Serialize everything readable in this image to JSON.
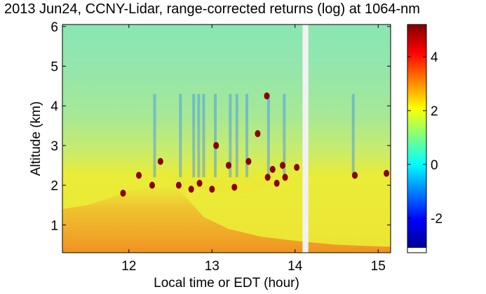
{
  "chart_data": {
    "type": "heatmap",
    "title": "2013 Jun24, CCNY-Lidar, range-corrected returns (log) at 1064-nm",
    "xlabel": "Local time or EDT (hour)",
    "ylabel": "Altitude (km)",
    "xlim": [
      11.2,
      15.15
    ],
    "ylim": [
      0.3,
      6.05
    ],
    "xticks": [
      "12",
      "13",
      "14",
      "15"
    ],
    "yticks": [
      "1",
      "2",
      "3",
      "4",
      "5",
      "6"
    ],
    "colorbar": {
      "range": [
        -3.1,
        5.2
      ],
      "ticks": [
        "-2",
        "0",
        "2",
        "4"
      ],
      "colormap": "jet"
    },
    "data_gap": [
      14.09,
      14.16
    ],
    "layers": {
      "boundary_layer_top_km": [
        {
          "x": 11.2,
          "y": 2.4
        },
        {
          "x": 11.6,
          "y": 2.35
        },
        {
          "x": 12.0,
          "y": 2.3
        },
        {
          "x": 12.4,
          "y": 2.2
        },
        {
          "x": 12.7,
          "y": 2.0
        },
        {
          "x": 13.0,
          "y": 1.85
        },
        {
          "x": 13.4,
          "y": 1.8
        },
        {
          "x": 13.8,
          "y": 2.05
        },
        {
          "x": 14.08,
          "y": 2.1
        },
        {
          "x": 14.2,
          "y": 2.2
        },
        {
          "x": 14.7,
          "y": 2.25
        },
        {
          "x": 15.15,
          "y": 2.3
        }
      ],
      "cloud_returns": [
        {
          "x": 11.93,
          "y": 1.8
        },
        {
          "x": 12.12,
          "y": 2.25
        },
        {
          "x": 12.28,
          "y": 2.0
        },
        {
          "x": 12.38,
          "y": 2.6
        },
        {
          "x": 12.6,
          "y": 2.0
        },
        {
          "x": 12.75,
          "y": 1.9
        },
        {
          "x": 12.85,
          "y": 2.05
        },
        {
          "x": 13.0,
          "y": 1.9
        },
        {
          "x": 13.05,
          "y": 3.0
        },
        {
          "x": 13.2,
          "y": 2.5
        },
        {
          "x": 13.27,
          "y": 1.95
        },
        {
          "x": 13.44,
          "y": 2.6
        },
        {
          "x": 13.55,
          "y": 3.3
        },
        {
          "x": 13.66,
          "y": 4.25
        },
        {
          "x": 13.67,
          "y": 2.2
        },
        {
          "x": 13.73,
          "y": 2.4
        },
        {
          "x": 13.78,
          "y": 2.05
        },
        {
          "x": 13.85,
          "y": 2.5
        },
        {
          "x": 13.88,
          "y": 2.2
        },
        {
          "x": 14.02,
          "y": 2.45
        },
        {
          "x": 14.72,
          "y": 2.25
        },
        {
          "x": 15.1,
          "y": 2.3
        }
      ]
    }
  }
}
